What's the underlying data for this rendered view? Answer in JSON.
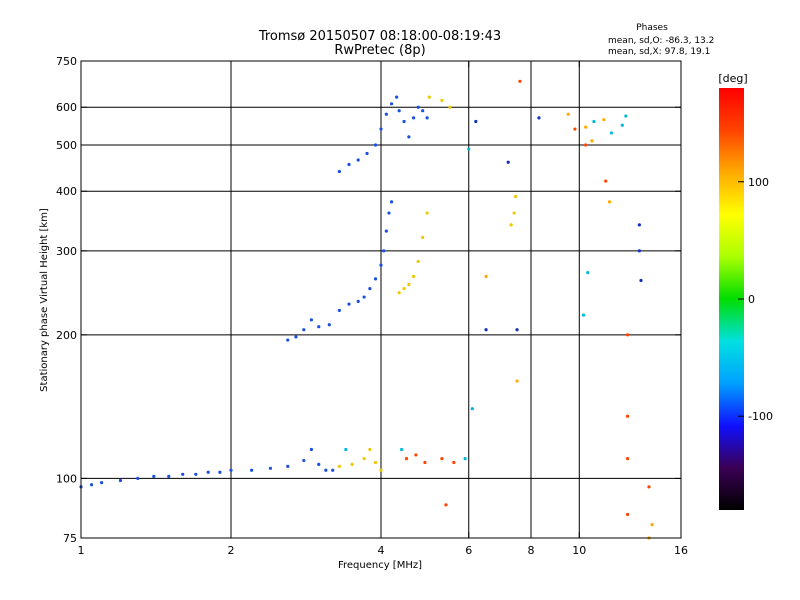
{
  "chart_data": {
    "type": "scatter",
    "title": "Tromsø 20150507 08:18:00-08:19:43",
    "subtitle": "RwPretec (8p)",
    "stats": {
      "heading": "Phases",
      "line_o": "mean, sd,O: -86.3, 13.2",
      "line_x": "mean, sd,X:  97.8, 19.1"
    },
    "xlabel": "Frequency [MHz]",
    "ylabel": "Stationary phase Virtual Height [km]",
    "x_scale": "log",
    "y_scale": "log",
    "xlim": [
      1,
      16
    ],
    "ylim": [
      75,
      750
    ],
    "x_ticks": [
      1,
      2,
      4,
      6,
      8,
      10,
      16
    ],
    "x_tick_labels": [
      "1",
      "2",
      "4",
      "6",
      "8",
      "10",
      "16"
    ],
    "x_gridlines": [
      2,
      4,
      6,
      8,
      10
    ],
    "y_ticks": [
      75,
      100,
      200,
      300,
      400,
      500,
      600,
      750
    ],
    "y_tick_labels": [
      "75",
      "100",
      "200",
      "300",
      "400",
      "500",
      "600",
      "750"
    ],
    "y_gridlines": [
      100,
      200,
      300,
      400,
      500,
      600
    ],
    "grid": true,
    "colorbar": {
      "label": "[deg]",
      "range": [
        -180,
        180
      ],
      "ticks": [
        -100,
        0,
        100
      ],
      "tick_labels": [
        "-100",
        "0",
        "100"
      ],
      "colors": [
        "#000000",
        "#3a0055",
        "#1010ff",
        "#00a0ff",
        "#00e0e0",
        "#00dd00",
        "#aaff00",
        "#ffff00",
        "#ffaa00",
        "#ff4400",
        "#ff0000"
      ]
    },
    "series": [
      {
        "phase": -85,
        "color": "#1a4fe0",
        "points": [
          [
            1.0,
            96
          ],
          [
            1.05,
            97
          ],
          [
            1.1,
            98
          ],
          [
            1.2,
            99
          ],
          [
            1.3,
            100
          ],
          [
            1.4,
            101
          ],
          [
            1.5,
            101
          ],
          [
            1.6,
            102
          ],
          [
            1.7,
            102
          ],
          [
            1.8,
            103
          ],
          [
            1.9,
            103
          ],
          [
            2.0,
            104
          ],
          [
            2.2,
            104
          ],
          [
            2.4,
            105
          ],
          [
            2.6,
            106
          ],
          [
            2.8,
            109
          ],
          [
            2.9,
            115
          ],
          [
            3.0,
            107
          ],
          [
            3.1,
            104
          ],
          [
            3.2,
            104
          ]
        ]
      },
      {
        "phase": -90,
        "color": "#1a4fe0",
        "points": [
          [
            2.6,
            195
          ],
          [
            2.7,
            198
          ],
          [
            2.8,
            205
          ],
          [
            2.9,
            215
          ],
          [
            3.0,
            208
          ],
          [
            3.15,
            210
          ],
          [
            3.3,
            225
          ],
          [
            3.45,
            232
          ],
          [
            3.6,
            235
          ],
          [
            3.7,
            240
          ],
          [
            3.8,
            250
          ],
          [
            3.9,
            262
          ],
          [
            4.0,
            280
          ],
          [
            4.05,
            300
          ],
          [
            4.1,
            330
          ],
          [
            4.15,
            360
          ],
          [
            4.2,
            380
          ]
        ]
      },
      {
        "phase": -85,
        "color": "#1a4fe0",
        "points": [
          [
            3.3,
            440
          ],
          [
            3.45,
            455
          ],
          [
            3.6,
            465
          ],
          [
            3.75,
            480
          ],
          [
            3.9,
            500
          ],
          [
            4.0,
            540
          ],
          [
            4.1,
            580
          ],
          [
            4.2,
            610
          ],
          [
            4.3,
            630
          ],
          [
            4.35,
            590
          ],
          [
            4.45,
            560
          ],
          [
            4.55,
            520
          ],
          [
            4.65,
            570
          ],
          [
            4.75,
            600
          ],
          [
            4.85,
            590
          ],
          [
            4.95,
            570
          ]
        ]
      },
      {
        "phase": 110,
        "color": "#f0c800",
        "points": [
          [
            3.3,
            106
          ],
          [
            3.5,
            107
          ],
          [
            3.7,
            110
          ],
          [
            3.8,
            115
          ],
          [
            3.9,
            108
          ],
          [
            4.0,
            104
          ],
          [
            4.35,
            245
          ],
          [
            4.45,
            250
          ],
          [
            4.55,
            255
          ],
          [
            4.65,
            265
          ],
          [
            4.75,
            285
          ],
          [
            4.85,
            320
          ],
          [
            4.95,
            360
          ],
          [
            5.0,
            630
          ],
          [
            5.3,
            620
          ],
          [
            5.5,
            600
          ],
          [
            7.3,
            340
          ],
          [
            7.4,
            360
          ],
          [
            7.45,
            390
          ]
        ]
      },
      {
        "phase": 150,
        "color": "#ff4400",
        "points": [
          [
            4.5,
            110
          ],
          [
            4.7,
            112
          ],
          [
            4.9,
            108
          ],
          [
            5.3,
            110
          ],
          [
            5.6,
            108
          ],
          [
            5.4,
            88
          ],
          [
            9.8,
            540
          ],
          [
            10.3,
            500
          ],
          [
            11.3,
            420
          ],
          [
            12.5,
            200
          ],
          [
            12.5,
            135
          ],
          [
            12.5,
            110
          ],
          [
            13.8,
            96
          ],
          [
            12.5,
            84
          ],
          [
            7.6,
            680
          ]
        ]
      },
      {
        "phase": 20,
        "color": "#00b8d8",
        "points": [
          [
            3.4,
            115
          ],
          [
            4.4,
            115
          ],
          [
            5.9,
            110
          ],
          [
            6.0,
            490
          ],
          [
            6.1,
            140
          ],
          [
            10.2,
            220
          ],
          [
            10.4,
            270
          ],
          [
            10.7,
            560
          ],
          [
            11.6,
            530
          ],
          [
            12.2,
            550
          ],
          [
            12.4,
            575
          ]
        ]
      },
      {
        "phase": -110,
        "color": "#1030c0",
        "points": [
          [
            6.5,
            205
          ],
          [
            7.5,
            205
          ],
          [
            7.2,
            460
          ],
          [
            6.2,
            560
          ],
          [
            8.3,
            570
          ],
          [
            13.3,
            260
          ],
          [
            13.2,
            300
          ],
          [
            13.2,
            340
          ]
        ]
      },
      {
        "phase": 130,
        "color": "#ffaa00",
        "points": [
          [
            6.5,
            265
          ],
          [
            7.5,
            160
          ],
          [
            9.5,
            580
          ],
          [
            10.3,
            545
          ],
          [
            10.6,
            510
          ],
          [
            11.2,
            565
          ],
          [
            11.5,
            380
          ],
          [
            14.0,
            80
          ],
          [
            13.8,
            75
          ]
        ]
      }
    ]
  }
}
